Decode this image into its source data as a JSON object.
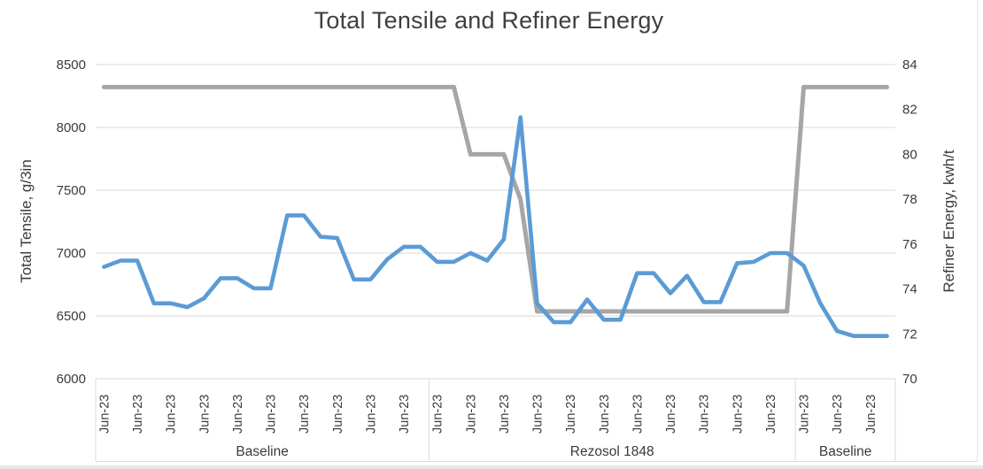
{
  "title": "Total Tensile and Refiner Energy",
  "chart_data": {
    "type": "line",
    "title": "Total Tensile and Refiner Energy",
    "grid": "horizontal",
    "legend": "none",
    "x_tick_label": "Jun-23",
    "x_groups": [
      {
        "label": "Baseline",
        "count": 20
      },
      {
        "label": "Rezosol 1848",
        "count": 22
      },
      {
        "label": "Baseline",
        "count": 6
      }
    ],
    "left_axis": {
      "title": "Total Tensile, g/3in",
      "min": 6000,
      "max": 8500,
      "ticks": [
        8500,
        8000,
        7500,
        7000,
        6500,
        6000
      ]
    },
    "right_axis": {
      "title": "Refiner Energy, kwh/t",
      "min": 70,
      "max": 84,
      "ticks": [
        84,
        82,
        80,
        78,
        76,
        74,
        72,
        70
      ]
    },
    "series": [
      {
        "name": "Refiner Energy, kwh/t",
        "axis": "right",
        "color": "#A6A6A6",
        "values": [
          83,
          83,
          83,
          83,
          83,
          83,
          83,
          83,
          83,
          83,
          83,
          83,
          83,
          83,
          83,
          83,
          83,
          83,
          83,
          83,
          83,
          83,
          80,
          80,
          80,
          78,
          73,
          73,
          73,
          73,
          73,
          73,
          73,
          73,
          73,
          73,
          73,
          73,
          73,
          73,
          73,
          73,
          83,
          83,
          83,
          83,
          83,
          83
        ]
      },
      {
        "name": "Total Tensile, g/3in",
        "axis": "left",
        "color": "#5B9BD5",
        "values": [
          6890,
          6940,
          6940,
          6600,
          6600,
          6570,
          6640,
          6800,
          6800,
          6720,
          6720,
          7300,
          7300,
          7130,
          7120,
          6790,
          6790,
          6950,
          7050,
          7050,
          6930,
          6930,
          7000,
          6940,
          7110,
          8080,
          6600,
          6450,
          6450,
          6630,
          6470,
          6470,
          6840,
          6840,
          6680,
          6820,
          6610,
          6610,
          6920,
          6930,
          7000,
          7000,
          6900,
          6600,
          6380,
          6340,
          6340,
          6340
        ]
      }
    ]
  },
  "colors": {
    "tensile_line": "#5B9BD5",
    "energy_line": "#A6A6A6",
    "gridline": "#D9D9D9",
    "text": "#3a3a3a",
    "title_text": "#3f3f3f"
  }
}
